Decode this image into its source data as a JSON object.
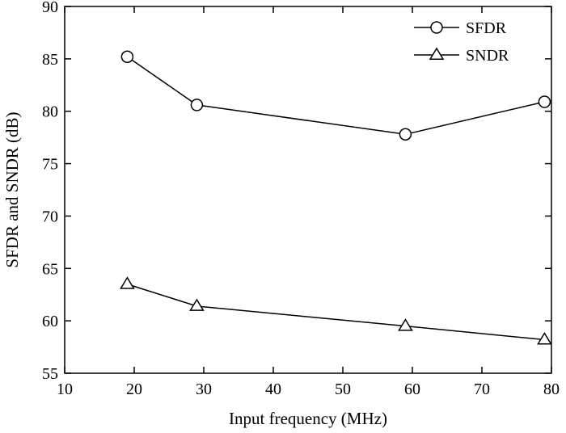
{
  "chart_data": {
    "type": "line",
    "title": "",
    "xlabel": "Input frequency (MHz)",
    "ylabel": "SFDR and SNDR (dB)",
    "xlim": [
      10,
      80
    ],
    "ylim": [
      55,
      90
    ],
    "xticks": [
      10,
      20,
      30,
      40,
      50,
      60,
      70,
      80
    ],
    "yticks": [
      55,
      60,
      65,
      70,
      75,
      80,
      85,
      90
    ],
    "grid": false,
    "legend_position": "top-right",
    "series": [
      {
        "name": "SFDR",
        "marker": "circle",
        "x": [
          19,
          29,
          59,
          79
        ],
        "y": [
          85.2,
          80.6,
          77.8,
          80.9
        ]
      },
      {
        "name": "SNDR",
        "marker": "triangle",
        "x": [
          19,
          29,
          59,
          79
        ],
        "y": [
          63.5,
          61.4,
          59.5,
          58.2
        ]
      }
    ]
  }
}
